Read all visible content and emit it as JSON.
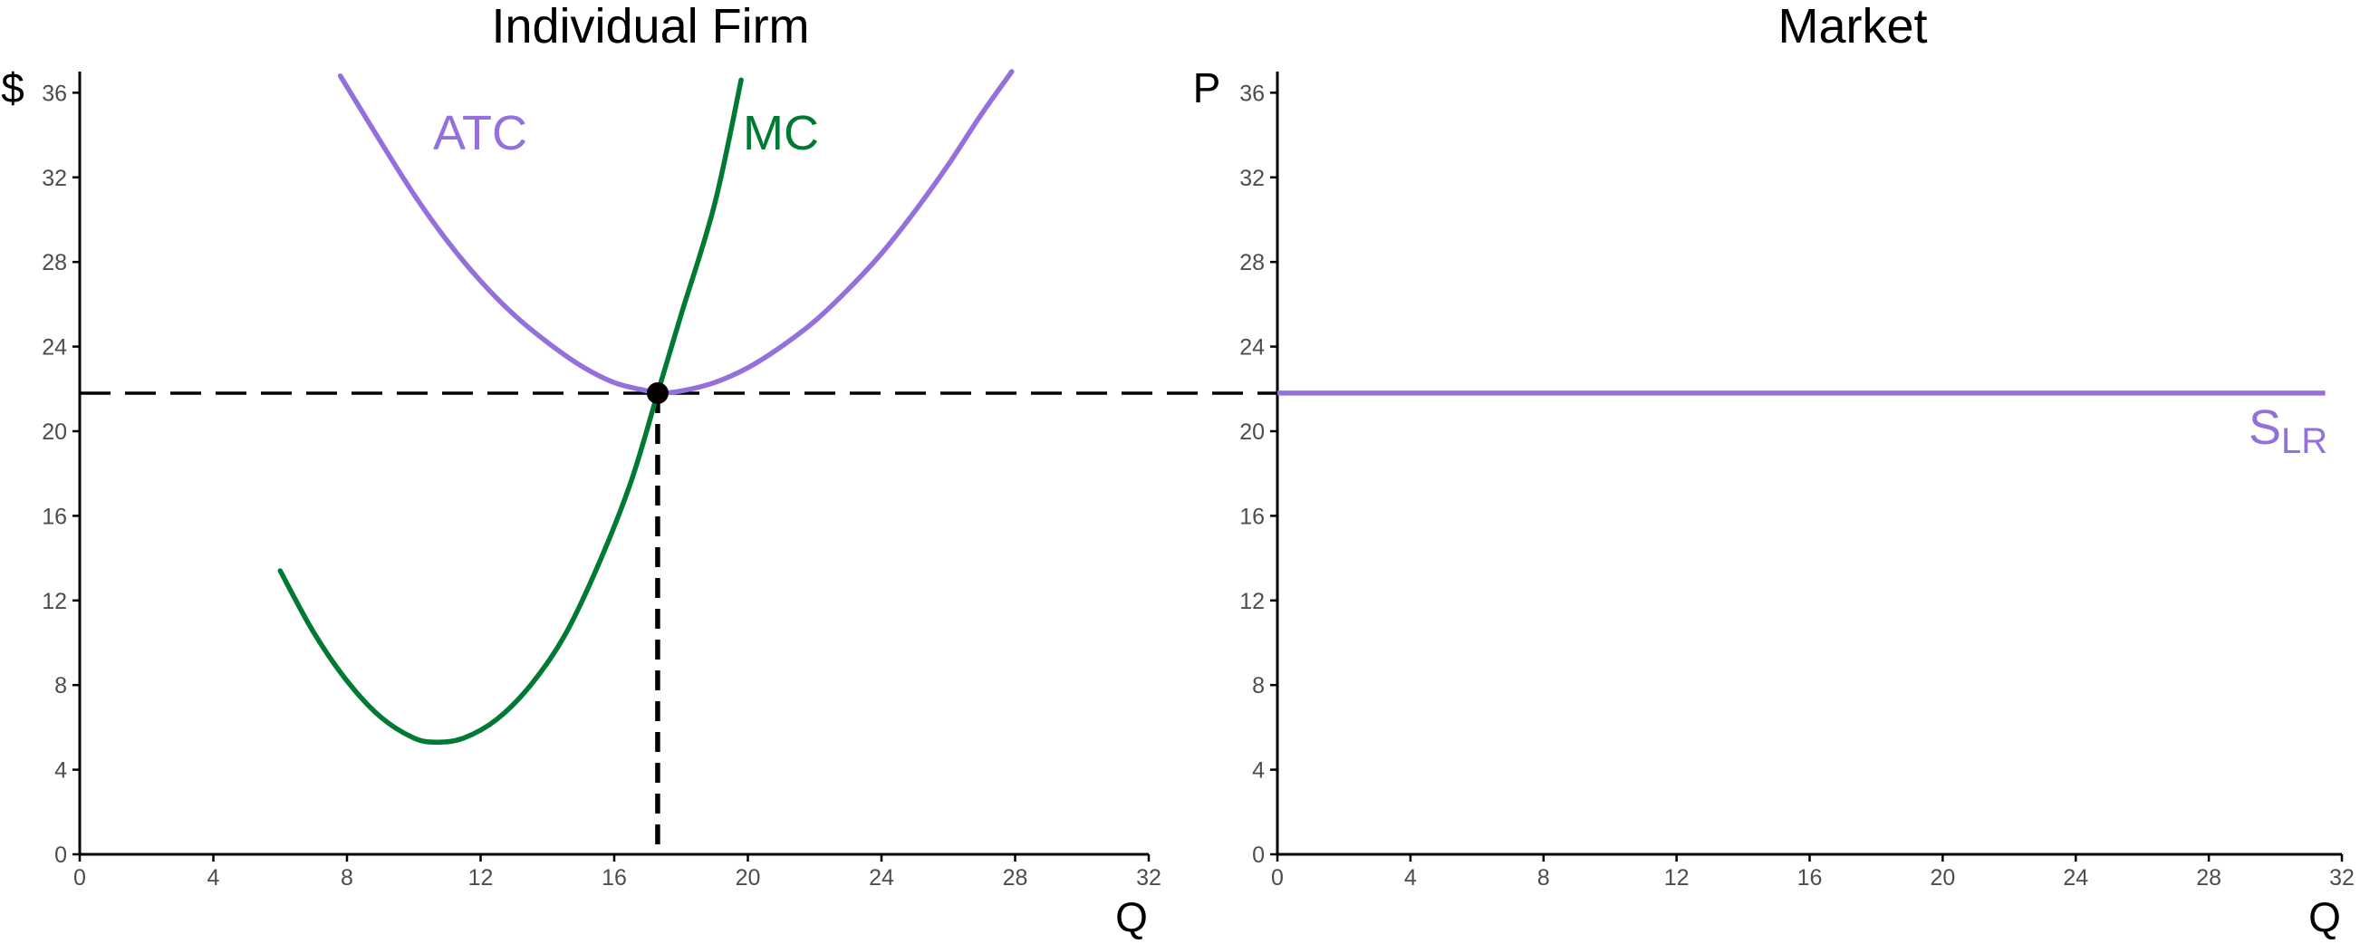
{
  "chart_data": [
    {
      "type": "line",
      "title": "Individual Firm",
      "xlabel": "Q",
      "ylabel": "$",
      "xlim": [
        0,
        32
      ],
      "ylim": [
        0,
        37
      ],
      "x_ticks": [
        0,
        4,
        8,
        12,
        16,
        20,
        24,
        28,
        32
      ],
      "y_ticks": [
        0,
        4,
        8,
        12,
        16,
        20,
        24,
        28,
        32,
        36
      ],
      "grid": false,
      "series": [
        {
          "name": "ATC",
          "color": "#9370DB",
          "points": [
            [
              7.8,
              36.8
            ],
            [
              9,
              33.7
            ],
            [
              10,
              31.2
            ],
            [
              11,
              29.0
            ],
            [
              12,
              27.1
            ],
            [
              13,
              25.5
            ],
            [
              14,
              24.2
            ],
            [
              15,
              23.1
            ],
            [
              16,
              22.3
            ],
            [
              17,
              21.9
            ],
            [
              17.3,
              21.8
            ],
            [
              18,
              21.9
            ],
            [
              19,
              22.3
            ],
            [
              20,
              23.0
            ],
            [
              21,
              24.0
            ],
            [
              22,
              25.2
            ],
            [
              23,
              26.7
            ],
            [
              24,
              28.4
            ],
            [
              25,
              30.4
            ],
            [
              26,
              32.6
            ],
            [
              27,
              35.0
            ],
            [
              27.9,
              37.0
            ]
          ]
        },
        {
          "name": "MC",
          "color": "#007A33",
          "points": [
            [
              6,
              13.4
            ],
            [
              7,
              10.5
            ],
            [
              8,
              8.2
            ],
            [
              9,
              6.5
            ],
            [
              10,
              5.5
            ],
            [
              10.7,
              5.3
            ],
            [
              11.5,
              5.5
            ],
            [
              12.5,
              6.4
            ],
            [
              13.5,
              8.0
            ],
            [
              14.5,
              10.3
            ],
            [
              15.5,
              13.6
            ],
            [
              16.5,
              17.6
            ],
            [
              17.3,
              21.8
            ],
            [
              18,
              25.5
            ],
            [
              19,
              30.7
            ],
            [
              19.8,
              36.6
            ]
          ]
        }
      ],
      "equilibrium": {
        "x": 17.3,
        "y": 21.8
      },
      "reference_lines": {
        "horizontal_y": 21.8,
        "vertical_x": 17.3,
        "style": "dashed"
      }
    },
    {
      "type": "line",
      "title": "Market",
      "xlabel": "Q",
      "ylabel": "P",
      "xlim": [
        0,
        32
      ],
      "ylim": [
        0,
        37
      ],
      "x_ticks": [
        0,
        4,
        8,
        12,
        16,
        20,
        24,
        28,
        32
      ],
      "y_ticks": [
        0,
        4,
        8,
        12,
        16,
        20,
        24,
        28,
        32,
        36
      ],
      "grid": false,
      "series": [
        {
          "name": "S",
          "name_subscript": "LR",
          "color": "#9370DB",
          "points": [
            [
              0,
              21.8
            ],
            [
              31.5,
              21.8
            ]
          ]
        }
      ]
    }
  ]
}
